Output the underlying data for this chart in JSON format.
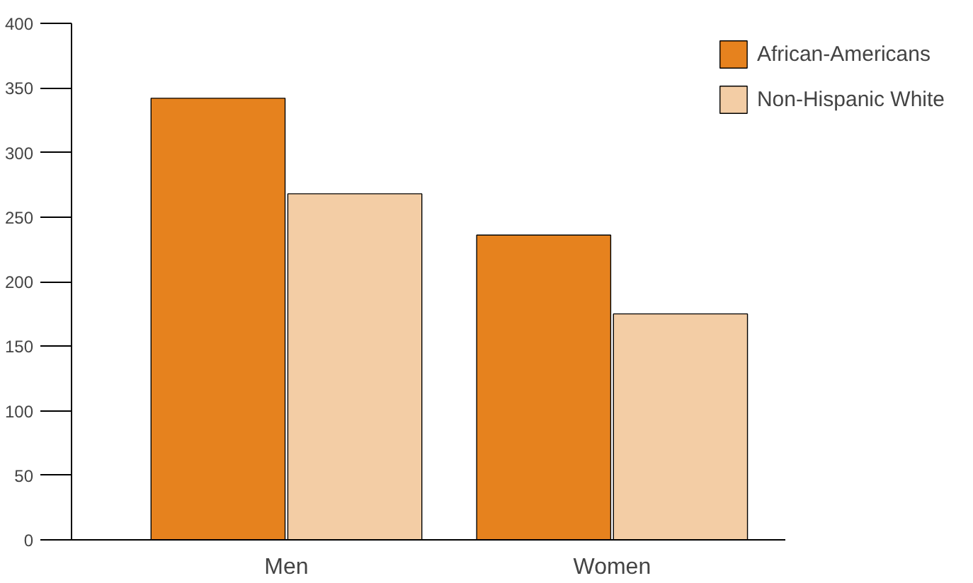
{
  "chart_data": {
    "type": "bar",
    "categories": [
      "Men",
      "Women"
    ],
    "series": [
      {
        "name": "African-Americans",
        "color": "#e6821e",
        "values": [
          342,
          236
        ]
      },
      {
        "name": "Non-Hispanic White",
        "color": "#f3cda5",
        "values": [
          268,
          175
        ]
      }
    ],
    "ylim": [
      0,
      400
    ],
    "yticks": [
      0,
      50,
      100,
      150,
      200,
      250,
      300,
      350,
      400
    ],
    "grid": false,
    "legend": "top right"
  }
}
